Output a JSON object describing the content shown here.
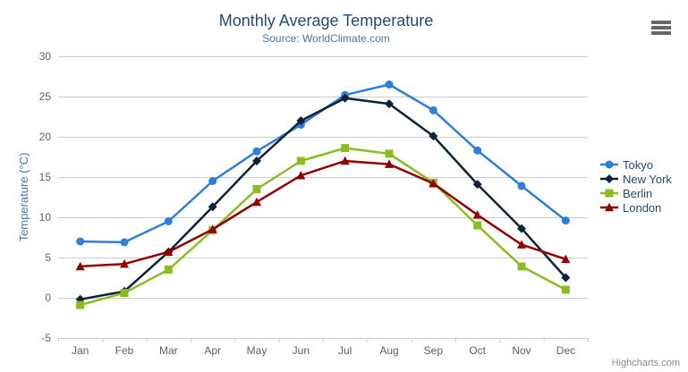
{
  "chart_data": {
    "type": "line",
    "title": "Monthly Average Temperature",
    "subtitle": "Source: WorldClimate.com",
    "xlabel": "",
    "ylabel": "Temperature (°C)",
    "ylim": [
      -5,
      30
    ],
    "yticks": [
      -5,
      0,
      5,
      10,
      15,
      20,
      25,
      30
    ],
    "grid": true,
    "legend_position": "right",
    "categories": [
      "Jan",
      "Feb",
      "Mar",
      "Apr",
      "May",
      "Jun",
      "Jul",
      "Aug",
      "Sep",
      "Oct",
      "Nov",
      "Dec"
    ],
    "series": [
      {
        "name": "Tokyo",
        "color": "#2f7ed8",
        "marker": "circle",
        "values": [
          7.0,
          6.9,
          9.5,
          14.5,
          18.2,
          21.5,
          25.2,
          26.5,
          23.3,
          18.3,
          13.9,
          9.6
        ]
      },
      {
        "name": "New York",
        "color": "#0d233a",
        "marker": "diamond",
        "values": [
          -0.2,
          0.8,
          5.7,
          11.3,
          17.0,
          22.0,
          24.8,
          24.1,
          20.1,
          14.1,
          8.6,
          2.5
        ]
      },
      {
        "name": "Berlin",
        "color": "#8bbc21",
        "marker": "square",
        "values": [
          -0.9,
          0.6,
          3.5,
          8.4,
          13.5,
          17.0,
          18.6,
          17.9,
          14.3,
          9.0,
          3.9,
          1.0
        ]
      },
      {
        "name": "London",
        "color": "#910000",
        "marker": "triangle",
        "values": [
          3.9,
          4.2,
          5.7,
          8.5,
          11.9,
          15.2,
          17.0,
          16.6,
          14.2,
          10.3,
          6.6,
          4.8
        ]
      }
    ]
  },
  "colors": {
    "title": "#274b6d",
    "subtitle": "#4d759e",
    "axis_label": "#606060",
    "axis_title": "#4d759e",
    "grid_line": "#cccccc",
    "axis_line": "#c0d0e0",
    "legend_text": "#274b6d",
    "credits_text": "#8a8a8a",
    "menu_icon": "#666666"
  },
  "credits": "Highcharts.com",
  "menu": {
    "icon": "hamburger-icon"
  }
}
